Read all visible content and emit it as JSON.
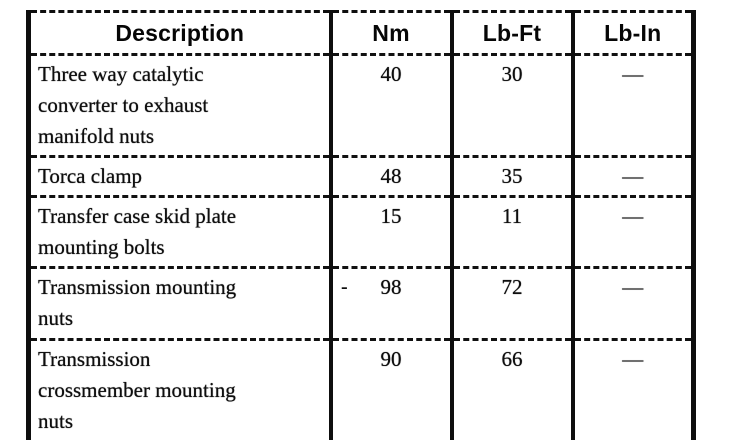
{
  "colors": {
    "ink": "#0e0e0e",
    "paper": "#ffffff"
  },
  "table": {
    "headers": [
      "Description",
      "Nm",
      "Lb-Ft",
      "Lb-In"
    ],
    "rows": [
      {
        "description": "Three way catalytic\nconverter to exhaust\nmanifold nuts",
        "nm": "40",
        "lb_ft": "30",
        "lb_in": "—"
      },
      {
        "description": "Torca clamp",
        "nm": "48",
        "lb_ft": "35",
        "lb_in": "—"
      },
      {
        "description": "Transfer case skid plate\nmounting bolts",
        "nm": "15",
        "lb_ft": "11",
        "lb_in": "—"
      },
      {
        "description": "Transmission mounting\nnuts",
        "nm": "98",
        "lb_ft": "72",
        "lb_in": "—"
      },
      {
        "description": "Transmission\ncrossmember mounting\nnuts",
        "nm": "90",
        "lb_ft": "66",
        "lb_in": "—"
      }
    ]
  },
  "artifacts": {
    "stray_mark": "-"
  }
}
